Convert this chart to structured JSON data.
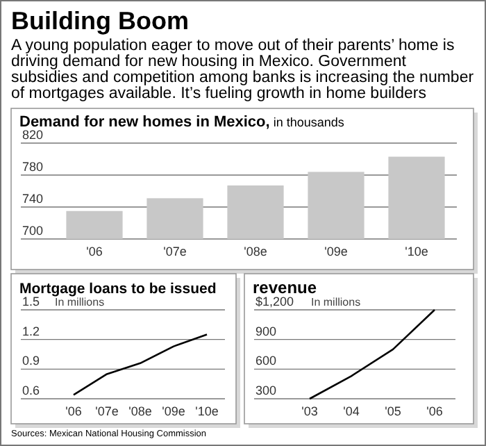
{
  "chart_data": [
    {
      "type": "other",
      "title": "Building Boom",
      "subtitle": "A young population eager to move out of their parents’ home is driving demand for new housing in Mexico. Government subsidies and competition among banks is increasing the number of mortgages available. It’s fueling growth in home builders",
      "annotations": [
        "Sources: Mexican National Housing Commission"
      ]
    },
    {
      "type": "bar",
      "title": "Demand for new homes in Mexico,",
      "subtitle": "in thousands",
      "categories": [
        "'06",
        "'07e",
        "'08e",
        "'09e",
        "'10e"
      ],
      "values": [
        735,
        751,
        767,
        784,
        803
      ],
      "color": "#c8c8c8",
      "ylim": [
        700,
        820
      ],
      "yticks": [
        700,
        740,
        780,
        820
      ],
      "grid": "y"
    },
    {
      "type": "line",
      "title": "Mortgage loans to be issued",
      "subtitle": "In millions",
      "categories": [
        "'06",
        "'07e",
        "'08e",
        "'09e",
        "'10e"
      ],
      "values": [
        0.64,
        0.85,
        0.96,
        1.13,
        1.25
      ],
      "color": "#000000",
      "ylim": [
        0.6,
        1.5
      ],
      "yticks": [
        0.6,
        0.9,
        1.2,
        1.5
      ],
      "grid": "y"
    },
    {
      "type": "line",
      "title": "revenue",
      "subtitle": "In millions",
      "categories": [
        "'03",
        "'04",
        "'05",
        "'06"
      ],
      "values": [
        300,
        530,
        800,
        1200
      ],
      "color": "#000000",
      "ylim": [
        300,
        1200
      ],
      "yticks": [
        300,
        600,
        900,
        {
          "value": 1200,
          "label": "$1,200"
        }
      ],
      "grid": "y"
    }
  ]
}
